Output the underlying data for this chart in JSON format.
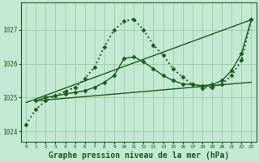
{
  "bg_color": "#c5e8d5",
  "line_color": "#1a5c1a",
  "grid_color": "#92c992",
  "xlabel": "Graphe pression niveau de la mer (hPa)",
  "xlabel_fontsize": 7.0,
  "xlim": [
    -0.5,
    23.5
  ],
  "ylim": [
    1023.7,
    1027.8
  ],
  "yticks": [
    1024,
    1025,
    1026,
    1027
  ],
  "xticks": [
    0,
    1,
    2,
    3,
    4,
    5,
    6,
    7,
    8,
    9,
    10,
    11,
    12,
    13,
    14,
    15,
    16,
    17,
    18,
    19,
    20,
    21,
    22,
    23
  ],
  "series": [
    {
      "x": [
        0,
        23
      ],
      "y": [
        1024.85,
        1027.3
      ],
      "linestyle": "-",
      "linewidth": 1.0,
      "marker": null,
      "markersize": 0
    },
    {
      "x": [
        1,
        23
      ],
      "y": [
        1024.9,
        1025.45
      ],
      "linestyle": "-",
      "linewidth": 1.0,
      "marker": null,
      "markersize": 0
    },
    {
      "x": [
        1,
        2,
        3,
        4,
        5,
        6,
        7,
        8,
        9,
        10,
        11,
        12,
        13,
        14,
        15,
        16,
        17,
        18,
        19,
        20,
        21,
        22,
        23
      ],
      "y": [
        1024.9,
        1025.0,
        1025.05,
        1025.1,
        1025.15,
        1025.2,
        1025.3,
        1025.45,
        1025.65,
        1026.15,
        1026.2,
        1026.05,
        1025.85,
        1025.65,
        1025.5,
        1025.4,
        1025.38,
        1025.35,
        1025.38,
        1025.5,
        1025.8,
        1026.3,
        1027.3
      ],
      "linestyle": "-",
      "linewidth": 1.0,
      "marker": "D",
      "markersize": 2.5
    },
    {
      "x": [
        0,
        1,
        2,
        3,
        4,
        5,
        6,
        7,
        8,
        9,
        10,
        11,
        12,
        13,
        14,
        15,
        16,
        17,
        18,
        19,
        20,
        21,
        22,
        23
      ],
      "y": [
        1024.2,
        1024.65,
        1024.9,
        1025.05,
        1025.18,
        1025.3,
        1025.55,
        1025.9,
        1026.5,
        1027.0,
        1027.25,
        1027.32,
        1027.0,
        1026.55,
        1026.25,
        1025.85,
        1025.6,
        1025.38,
        1025.28,
        1025.3,
        1025.4,
        1025.65,
        1026.1,
        1027.3
      ],
      "linestyle": ":",
      "linewidth": 1.4,
      "marker": "D",
      "markersize": 2.5
    }
  ]
}
